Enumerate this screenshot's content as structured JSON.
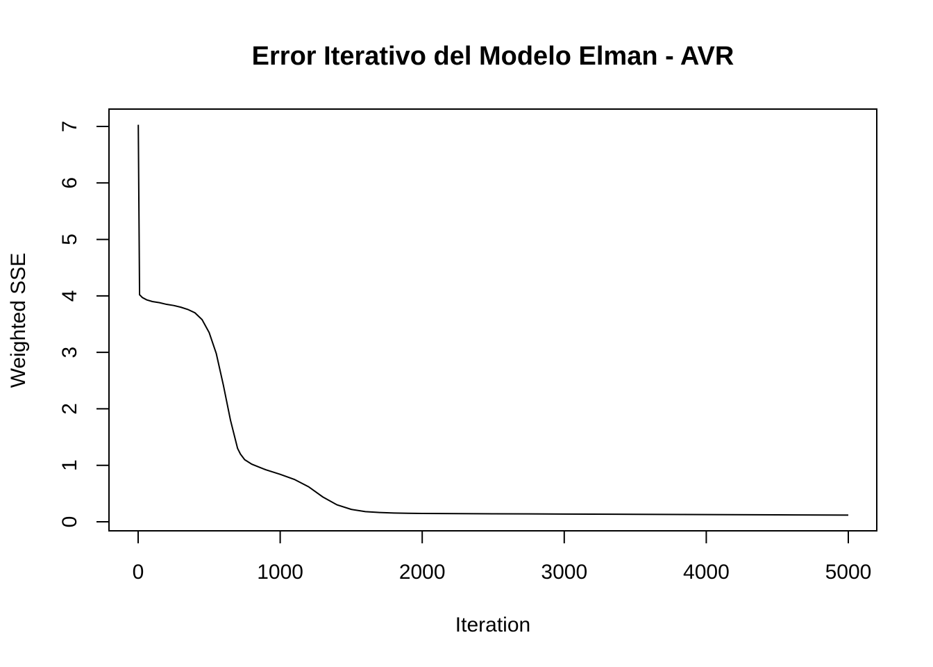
{
  "chart_data": {
    "type": "line",
    "title": "Error Iterativo del Modelo Elman - AVR",
    "xlabel": "Iteration",
    "ylabel": "Weighted SSE",
    "xlim": [
      0,
      5000
    ],
    "ylim": [
      0,
      7
    ],
    "x_ticks": [
      0,
      1000,
      2000,
      3000,
      4000,
      5000
    ],
    "y_ticks": [
      0,
      1,
      2,
      3,
      4,
      5,
      6,
      7
    ],
    "x_tick_labels": [
      "0",
      "1000",
      "2000",
      "3000",
      "4000",
      "5000"
    ],
    "y_tick_labels": [
      "0",
      "1",
      "2",
      "3",
      "4",
      "5",
      "6",
      "7"
    ],
    "grid": false,
    "legend": "none",
    "line_color": "#000000",
    "series": [
      {
        "x": [
          1,
          10,
          30,
          60,
          100,
          150,
          200,
          250,
          300,
          350,
          400,
          450,
          500,
          550,
          600,
          650,
          700,
          720,
          750,
          800,
          850,
          900,
          1000,
          1100,
          1200,
          1300,
          1400,
          1500,
          1600,
          1700,
          1800,
          1900,
          2000,
          2500,
          3000,
          3500,
          4000,
          4500,
          5000
        ],
        "y": [
          7.03,
          4.02,
          3.97,
          3.93,
          3.9,
          3.88,
          3.85,
          3.83,
          3.8,
          3.76,
          3.7,
          3.58,
          3.35,
          2.98,
          2.42,
          1.8,
          1.3,
          1.2,
          1.1,
          1.02,
          0.97,
          0.92,
          0.84,
          0.75,
          0.62,
          0.44,
          0.3,
          0.22,
          0.18,
          0.165,
          0.155,
          0.15,
          0.148,
          0.142,
          0.137,
          0.133,
          0.128,
          0.123,
          0.118
        ]
      }
    ]
  }
}
